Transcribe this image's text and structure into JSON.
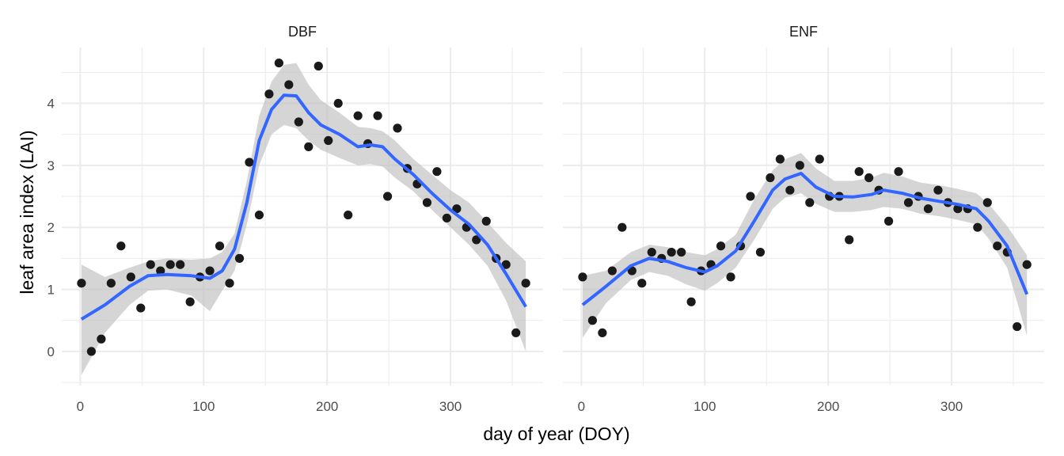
{
  "chart_data": {
    "type": "scatter",
    "xlabel": "day of year (DOY)",
    "ylabel": "leaf area index (LAI)",
    "xlim": [
      -15,
      375
    ],
    "ylim": [
      -0.55,
      4.9
    ],
    "x_ticks": [
      0,
      100,
      200,
      300
    ],
    "y_ticks": [
      0,
      1,
      2,
      3,
      4
    ],
    "grid": true,
    "colors": {
      "points": "#1a1a1a",
      "smooth": "#3366ff",
      "band": "#bebebe",
      "grid": "#ebebeb"
    },
    "panels": [
      {
        "label": "DBF",
        "points": [
          [
            1,
            1.1
          ],
          [
            9,
            0
          ],
          [
            17,
            0.2
          ],
          [
            25,
            1.1
          ],
          [
            33,
            1.7
          ],
          [
            41,
            1.2
          ],
          [
            49,
            0.7
          ],
          [
            57,
            1.4
          ],
          [
            65,
            1.3
          ],
          [
            73,
            1.4
          ],
          [
            81,
            1.4
          ],
          [
            89,
            0.8
          ],
          [
            97,
            1.2
          ],
          [
            105,
            1.3
          ],
          [
            113,
            1.7
          ],
          [
            121,
            1.1
          ],
          [
            129,
            1.5
          ],
          [
            137,
            3.05
          ],
          [
            145,
            2.2
          ],
          [
            153,
            4.15
          ],
          [
            161,
            4.65
          ],
          [
            169,
            4.3
          ],
          [
            177,
            3.7
          ],
          [
            185,
            3.3
          ],
          [
            193,
            4.6
          ],
          [
            201,
            3.4
          ],
          [
            209,
            4.0
          ],
          [
            217,
            2.2
          ],
          [
            225,
            3.8
          ],
          [
            233,
            3.35
          ],
          [
            241,
            3.8
          ],
          [
            249,
            2.5
          ],
          [
            257,
            3.6
          ],
          [
            265,
            2.95
          ],
          [
            273,
            2.7
          ],
          [
            281,
            2.4
          ],
          [
            289,
            2.9
          ],
          [
            297,
            2.15
          ],
          [
            305,
            2.3
          ],
          [
            313,
            2.0
          ],
          [
            321,
            1.8
          ],
          [
            329,
            2.1
          ],
          [
            337,
            1.5
          ],
          [
            345,
            1.4
          ],
          [
            353,
            0.3
          ],
          [
            361,
            1.1
          ]
        ],
        "smooth": [
          [
            1,
            0.52
          ],
          [
            20,
            0.75
          ],
          [
            40,
            1.05
          ],
          [
            55,
            1.22
          ],
          [
            70,
            1.24
          ],
          [
            90,
            1.22
          ],
          [
            105,
            1.18
          ],
          [
            115,
            1.3
          ],
          [
            125,
            1.65
          ],
          [
            135,
            2.4
          ],
          [
            145,
            3.4
          ],
          [
            155,
            3.9
          ],
          [
            165,
            4.13
          ],
          [
            175,
            4.12
          ],
          [
            185,
            3.85
          ],
          [
            195,
            3.65
          ],
          [
            210,
            3.5
          ],
          [
            225,
            3.3
          ],
          [
            235,
            3.33
          ],
          [
            245,
            3.3
          ],
          [
            255,
            3.1
          ],
          [
            270,
            2.85
          ],
          [
            285,
            2.55
          ],
          [
            300,
            2.28
          ],
          [
            315,
            2.05
          ],
          [
            330,
            1.72
          ],
          [
            345,
            1.25
          ],
          [
            361,
            0.72
          ]
        ],
        "band_upper": [
          [
            1,
            1.4
          ],
          [
            20,
            1.2
          ],
          [
            40,
            1.35
          ],
          [
            55,
            1.45
          ],
          [
            70,
            1.5
          ],
          [
            90,
            1.48
          ],
          [
            105,
            1.5
          ],
          [
            115,
            1.6
          ],
          [
            125,
            1.9
          ],
          [
            135,
            2.75
          ],
          [
            145,
            3.8
          ],
          [
            155,
            4.35
          ],
          [
            165,
            4.62
          ],
          [
            175,
            4.65
          ],
          [
            185,
            4.3
          ],
          [
            195,
            4.05
          ],
          [
            210,
            3.85
          ],
          [
            225,
            3.62
          ],
          [
            235,
            3.6
          ],
          [
            245,
            3.55
          ],
          [
            255,
            3.4
          ],
          [
            270,
            3.1
          ],
          [
            285,
            2.85
          ],
          [
            300,
            2.6
          ],
          [
            315,
            2.4
          ],
          [
            330,
            2.08
          ],
          [
            345,
            1.75
          ],
          [
            361,
            1.45
          ]
        ],
        "band_lower": [
          [
            1,
            -0.38
          ],
          [
            20,
            0.3
          ],
          [
            40,
            0.75
          ],
          [
            55,
            0.98
          ],
          [
            70,
            1.0
          ],
          [
            90,
            0.9
          ],
          [
            105,
            0.65
          ],
          [
            115,
            0.98
          ],
          [
            125,
            1.3
          ],
          [
            135,
            2.05
          ],
          [
            145,
            3.0
          ],
          [
            155,
            3.5
          ],
          [
            165,
            3.65
          ],
          [
            175,
            3.6
          ],
          [
            185,
            3.4
          ],
          [
            195,
            3.25
          ],
          [
            210,
            3.12
          ],
          [
            225,
            3.0
          ],
          [
            235,
            3.02
          ],
          [
            245,
            2.98
          ],
          [
            255,
            2.8
          ],
          [
            270,
            2.58
          ],
          [
            285,
            2.28
          ],
          [
            300,
            2.0
          ],
          [
            315,
            1.72
          ],
          [
            330,
            1.38
          ],
          [
            345,
            0.82
          ],
          [
            361,
            0.0
          ]
        ]
      },
      {
        "label": "ENF",
        "points": [
          [
            1,
            1.2
          ],
          [
            9,
            0.5
          ],
          [
            17,
            0.3
          ],
          [
            25,
            1.3
          ],
          [
            33,
            2.0
          ],
          [
            41,
            1.3
          ],
          [
            49,
            1.1
          ],
          [
            57,
            1.6
          ],
          [
            65,
            1.5
          ],
          [
            73,
            1.6
          ],
          [
            81,
            1.6
          ],
          [
            89,
            0.8
          ],
          [
            97,
            1.3
          ],
          [
            105,
            1.4
          ],
          [
            113,
            1.7
          ],
          [
            121,
            1.2
          ],
          [
            129,
            1.7
          ],
          [
            137,
            2.5
          ],
          [
            145,
            1.6
          ],
          [
            153,
            2.8
          ],
          [
            161,
            3.1
          ],
          [
            169,
            2.6
          ],
          [
            177,
            3.0
          ],
          [
            185,
            2.4
          ],
          [
            193,
            3.1
          ],
          [
            201,
            2.5
          ],
          [
            209,
            2.5
          ],
          [
            217,
            1.8
          ],
          [
            225,
            2.9
          ],
          [
            233,
            2.8
          ],
          [
            241,
            2.6
          ],
          [
            249,
            2.1
          ],
          [
            257,
            2.9
          ],
          [
            265,
            2.4
          ],
          [
            273,
            2.5
          ],
          [
            281,
            2.3
          ],
          [
            289,
            2.6
          ],
          [
            297,
            2.4
          ],
          [
            305,
            2.3
          ],
          [
            313,
            2.3
          ],
          [
            321,
            2.0
          ],
          [
            329,
            2.4
          ],
          [
            337,
            1.7
          ],
          [
            345,
            1.6
          ],
          [
            353,
            0.4
          ],
          [
            361,
            1.4
          ]
        ],
        "smooth": [
          [
            1,
            0.75
          ],
          [
            20,
            1.05
          ],
          [
            40,
            1.38
          ],
          [
            55,
            1.5
          ],
          [
            70,
            1.45
          ],
          [
            85,
            1.35
          ],
          [
            100,
            1.28
          ],
          [
            110,
            1.38
          ],
          [
            125,
            1.62
          ],
          [
            140,
            2.1
          ],
          [
            155,
            2.6
          ],
          [
            165,
            2.78
          ],
          [
            178,
            2.87
          ],
          [
            190,
            2.65
          ],
          [
            205,
            2.5
          ],
          [
            220,
            2.49
          ],
          [
            235,
            2.53
          ],
          [
            245,
            2.6
          ],
          [
            260,
            2.55
          ],
          [
            275,
            2.47
          ],
          [
            290,
            2.42
          ],
          [
            305,
            2.37
          ],
          [
            320,
            2.3
          ],
          [
            330,
            2.1
          ],
          [
            345,
            1.7
          ],
          [
            361,
            0.92
          ]
        ],
        "band_upper": [
          [
            1,
            1.22
          ],
          [
            20,
            1.3
          ],
          [
            40,
            1.6
          ],
          [
            55,
            1.72
          ],
          [
            70,
            1.68
          ],
          [
            85,
            1.6
          ],
          [
            100,
            1.55
          ],
          [
            110,
            1.65
          ],
          [
            125,
            1.88
          ],
          [
            140,
            2.45
          ],
          [
            155,
            2.92
          ],
          [
            165,
            3.1
          ],
          [
            178,
            3.2
          ],
          [
            190,
            2.95
          ],
          [
            205,
            2.75
          ],
          [
            220,
            2.75
          ],
          [
            235,
            2.8
          ],
          [
            245,
            2.88
          ],
          [
            260,
            2.82
          ],
          [
            275,
            2.72
          ],
          [
            290,
            2.68
          ],
          [
            305,
            2.62
          ],
          [
            320,
            2.55
          ],
          [
            330,
            2.38
          ],
          [
            345,
            2.02
          ],
          [
            361,
            1.55
          ]
        ],
        "band_lower": [
          [
            1,
            0.22
          ],
          [
            20,
            0.78
          ],
          [
            40,
            1.15
          ],
          [
            55,
            1.28
          ],
          [
            70,
            1.22
          ],
          [
            85,
            1.08
          ],
          [
            100,
            0.98
          ],
          [
            110,
            1.1
          ],
          [
            125,
            1.35
          ],
          [
            140,
            1.8
          ],
          [
            155,
            2.3
          ],
          [
            165,
            2.48
          ],
          [
            178,
            2.55
          ],
          [
            190,
            2.38
          ],
          [
            205,
            2.25
          ],
          [
            220,
            2.25
          ],
          [
            235,
            2.28
          ],
          [
            245,
            2.33
          ],
          [
            260,
            2.3
          ],
          [
            275,
            2.22
          ],
          [
            290,
            2.18
          ],
          [
            305,
            2.12
          ],
          [
            320,
            2.05
          ],
          [
            330,
            1.82
          ],
          [
            345,
            1.35
          ],
          [
            361,
            0.25
          ]
        ]
      }
    ]
  }
}
